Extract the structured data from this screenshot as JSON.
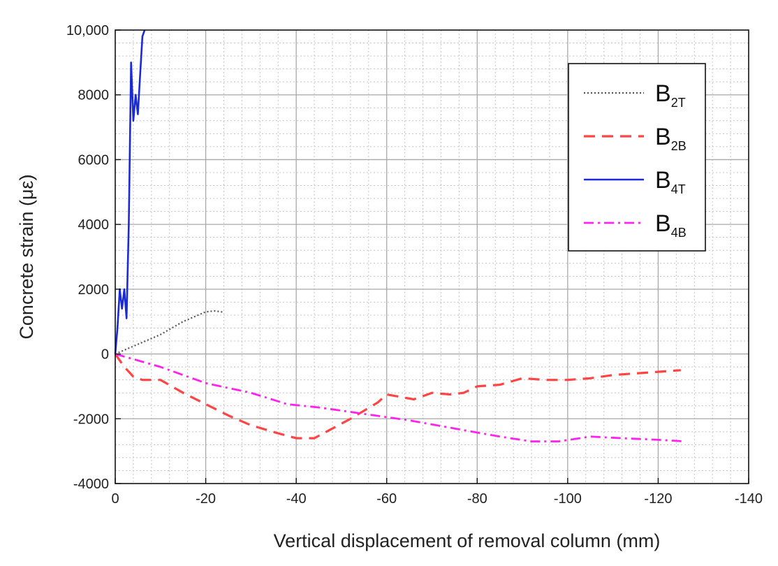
{
  "chart_data": {
    "type": "line",
    "title": "",
    "xlabel": "Vertical displacement of removal column (mm)",
    "ylabel": "Concrete strain (με)",
    "xlim": [
      0,
      -140
    ],
    "ylim": [
      -4000,
      10000
    ],
    "xticks": [
      0,
      -20,
      -40,
      -60,
      -80,
      -100,
      -120,
      -140
    ],
    "xtick_labels": [
      "0",
      "-20",
      "-40",
      "-60",
      "-80",
      "-100",
      "-120",
      "-140"
    ],
    "yticks": [
      -4000,
      -2000,
      0,
      2000,
      4000,
      6000,
      8000,
      10000
    ],
    "ytick_labels": [
      "-4000",
      "-2000",
      "0",
      "2000",
      "4000",
      "6000",
      "8000",
      "10,000"
    ],
    "grid": true,
    "legend_position": "top-right",
    "series": [
      {
        "name": "B2T",
        "label_main": "B",
        "label_sub": "2T",
        "color": "#555555",
        "style": "dotted",
        "x": [
          0,
          -5,
          -10,
          -15,
          -20,
          -22,
          -24
        ],
        "y": [
          0,
          300,
          600,
          1000,
          1300,
          1330,
          1290
        ]
      },
      {
        "name": "B2B",
        "label_main": "B",
        "label_sub": "2B",
        "color": "#ff4444",
        "style": "dashed",
        "x": [
          0,
          -2,
          -4,
          -6,
          -10,
          -15,
          -20,
          -25,
          -30,
          -36,
          -40,
          -44,
          -48,
          -52,
          -55,
          -58,
          -60,
          -62,
          -66,
          -70,
          -74,
          -77,
          -80,
          -85,
          -90,
          -95,
          -100,
          -105,
          -110,
          -115,
          -120,
          -125
        ],
        "y": [
          0,
          -400,
          -700,
          -800,
          -800,
          -1200,
          -1550,
          -1900,
          -2200,
          -2450,
          -2600,
          -2600,
          -2300,
          -2000,
          -1750,
          -1500,
          -1250,
          -1300,
          -1400,
          -1200,
          -1250,
          -1200,
          -1000,
          -950,
          -750,
          -800,
          -800,
          -750,
          -650,
          -600,
          -550,
          -500
        ]
      },
      {
        "name": "B4T",
        "label_main": "B",
        "label_sub": "4T",
        "color": "#1a2bd6",
        "style": "solid",
        "x": [
          0,
          -0.5,
          -1,
          -1.5,
          -2,
          -2.5,
          -3,
          -3.5,
          -4,
          -4.5,
          -5,
          -5.5,
          -6,
          -6.5
        ],
        "y": [
          0,
          800,
          2000,
          1400,
          2000,
          1100,
          4000,
          9000,
          7200,
          8000,
          7400,
          8600,
          9800,
          10000
        ]
      },
      {
        "name": "B4B",
        "label_main": "B",
        "label_sub": "4B",
        "color": "#ff22ee",
        "style": "dashdot",
        "x": [
          0,
          -5,
          -10,
          -20,
          -30,
          -38,
          -45,
          -55,
          -65,
          -75,
          -85,
          -92,
          -98,
          -105,
          -112,
          -120,
          -126
        ],
        "y": [
          0,
          -200,
          -400,
          -900,
          -1200,
          -1550,
          -1650,
          -1850,
          -2050,
          -2300,
          -2550,
          -2700,
          -2700,
          -2550,
          -2600,
          -2650,
          -2700
        ]
      }
    ]
  }
}
